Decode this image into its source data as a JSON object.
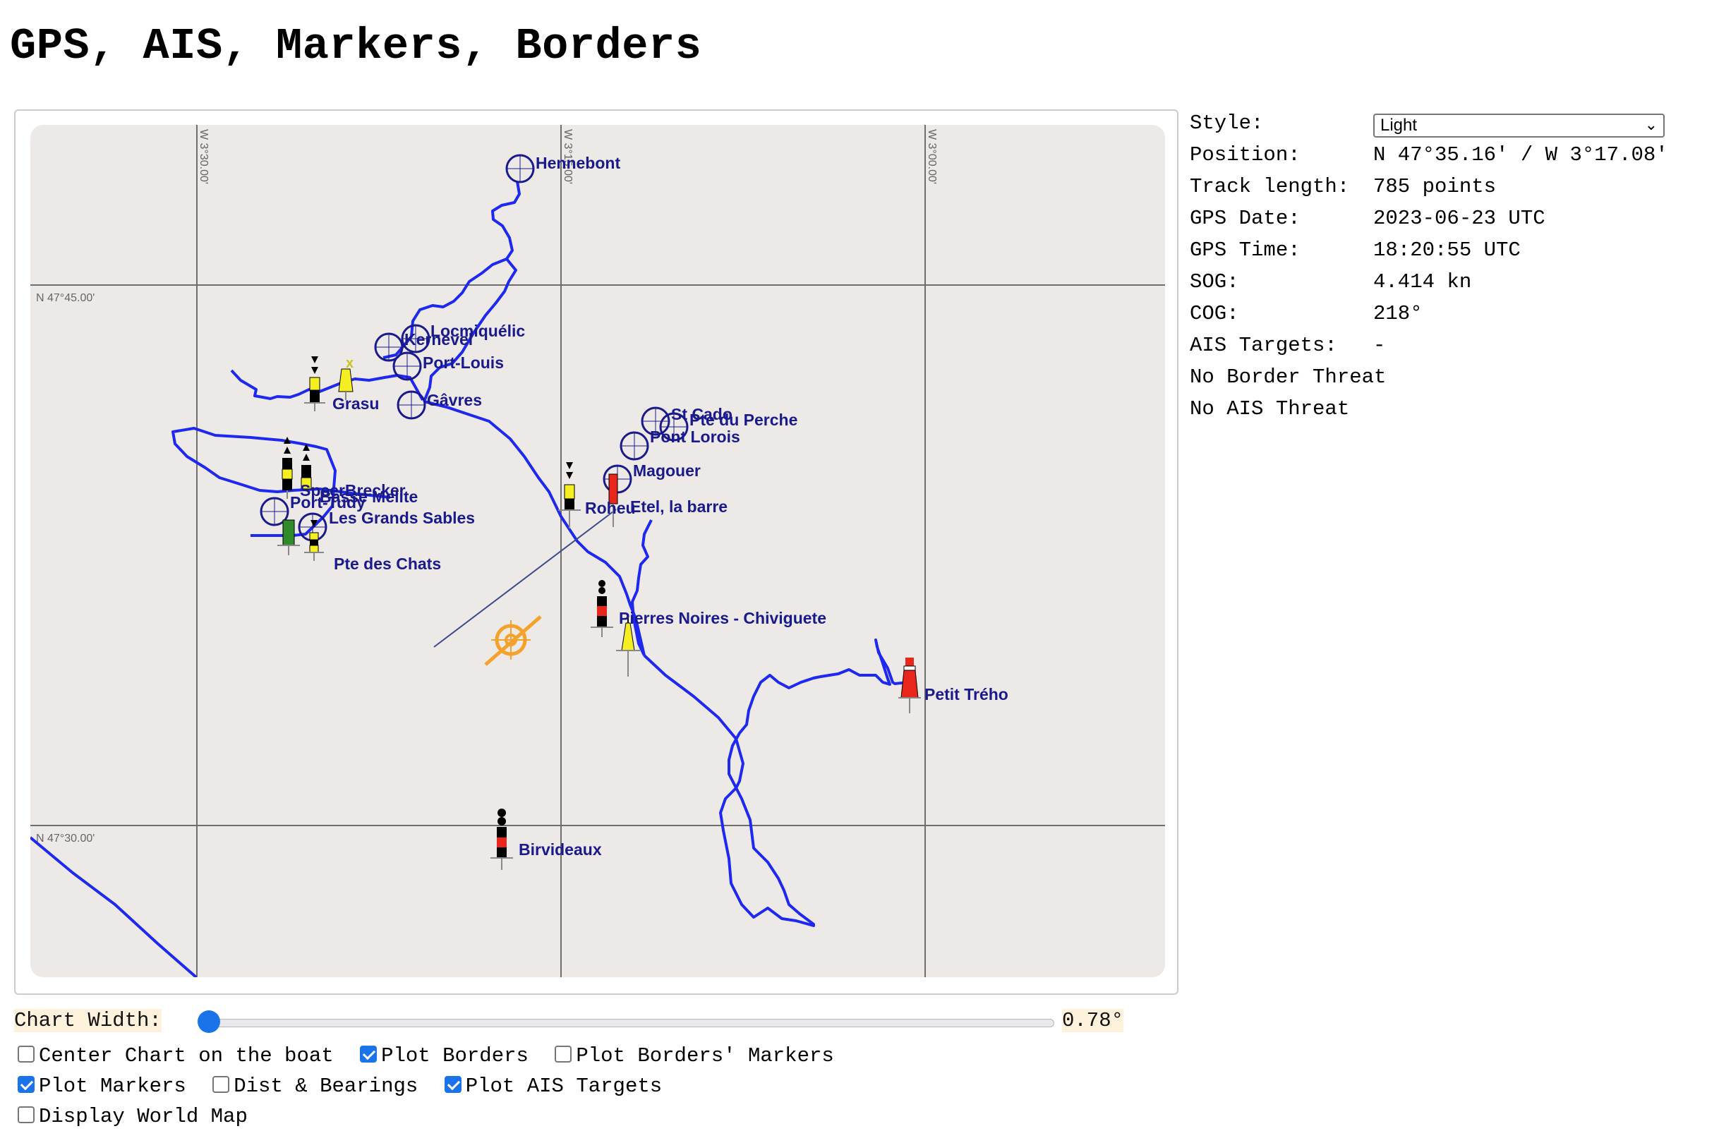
{
  "page": {
    "title": "GPS, AIS, Markers, Borders"
  },
  "chart": {
    "coords": {
      "lon_left": "W 3°30.00'",
      "lon_mid": "W 3°15.00'",
      "lon_right": "W 3°00.00'",
      "lat_top": "N 47°45.00'",
      "lat_bottom": "N 47°30.00'"
    },
    "places": {
      "hennebont": "Hennebont",
      "locmiquelic": "Locmiquélic",
      "kernevel": "Kernevel",
      "port_louis": "Port-Louis",
      "gavres": "Gâvres",
      "grasu": "Grasu",
      "st_cado": "St Cado",
      "pte_du_perche": "Pte du Perche",
      "pont_lorois": "Pont Lorois",
      "magouer": "Magouer",
      "etel_barre": "Etel, la barre",
      "roheu": "Roheu",
      "speerbrecker": "SpeerBrecker",
      "basse_melite": "Basse Melite",
      "port_tudy": "Port-Tudy",
      "grands_sables": "Les Grands Sables",
      "pte_des_chats": "Pte des Chats",
      "pierres_noires": "Pierres Noires - Chiviguete",
      "petit_treho": "Petit Trého",
      "birvideaux": "Birvideaux"
    },
    "colors": {
      "background": "#ece9e7",
      "grid": "#6e6e6e",
      "track": "#1f28f0",
      "label": "#1a1a8c",
      "boat": "#f5a22c",
      "buoy_red": "#e8261c",
      "buoy_yellow": "#f4ee22",
      "buoy_green": "#2f8a2a"
    }
  },
  "info": {
    "style_label": "Style:",
    "style_value": "Light",
    "position_label": "Position:",
    "position_value": "N 47°35.16' / W 3°17.08'",
    "track_label": "Track length:",
    "track_value": "785 points",
    "gps_date_label": "GPS Date:",
    "gps_date_value": "2023-06-23 UTC",
    "gps_time_label": "GPS Time:",
    "gps_time_value": "18:20:55 UTC",
    "sog_label": "SOG:",
    "sog_value": "4.414 kn",
    "cog_label": "COG:",
    "cog_value": "218°",
    "ais_label": "AIS Targets:",
    "ais_value": "-",
    "border_threat": "No Border Threat",
    "ais_threat": "No AIS Threat"
  },
  "controls": {
    "width_label": "Chart Width:",
    "width_value": "0.78°",
    "width_slider_fraction": 0.0,
    "checkboxes": {
      "center_chart": {
        "label": "Center Chart on the boat",
        "checked": false
      },
      "plot_borders": {
        "label": "Plot Borders",
        "checked": true
      },
      "plot_border_markers": {
        "label": "Plot Borders' Markers",
        "checked": false
      },
      "plot_markers": {
        "label": "Plot Markers",
        "checked": true
      },
      "dist_bearings": {
        "label": "Dist & Bearings",
        "checked": false
      },
      "plot_ais": {
        "label": "Plot AIS Targets",
        "checked": true
      },
      "world_map": {
        "label": "Display World Map",
        "checked": false
      }
    }
  }
}
